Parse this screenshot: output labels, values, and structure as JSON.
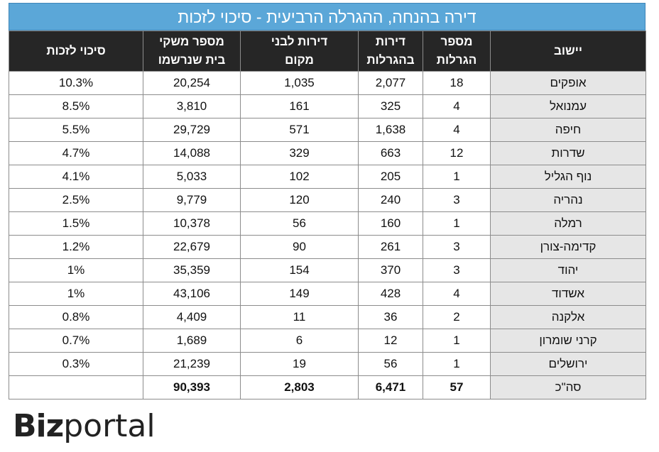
{
  "title": "דירה בהנחה, ההגרלה הרביעית - סיכוי לזכות",
  "headers": {
    "chance": "סיכוי לזכות",
    "households": [
      "מספר משקי",
      "בית  שנרשמו"
    ],
    "local": [
      "דירות לבני",
      "מקום"
    ],
    "lottery_apts": [
      "דירות",
      "בהגרלות"
    ],
    "lotteries": [
      "מספר",
      "הגרלות"
    ],
    "city": "יישוב"
  },
  "rows": [
    {
      "city": "אופקים",
      "lotteries": "18",
      "lottery_apts": "2,077",
      "local": "1,035",
      "households": "20,254",
      "chance": "10.3%"
    },
    {
      "city": "עמנואל",
      "lotteries": "4",
      "lottery_apts": "325",
      "local": "161",
      "households": "3,810",
      "chance": "8.5%"
    },
    {
      "city": "חיפה",
      "lotteries": "4",
      "lottery_apts": "1,638",
      "local": "571",
      "households": "29,729",
      "chance": "5.5%"
    },
    {
      "city": "שדרות",
      "lotteries": "12",
      "lottery_apts": "663",
      "local": "329",
      "households": "14,088",
      "chance": "4.7%"
    },
    {
      "city": "נוף הגליל",
      "lotteries": "1",
      "lottery_apts": "205",
      "local": "102",
      "households": "5,033",
      "chance": "4.1%"
    },
    {
      "city": "נהריה",
      "lotteries": "3",
      "lottery_apts": "240",
      "local": "120",
      "households": "9,779",
      "chance": "2.5%"
    },
    {
      "city": "רמלה",
      "lotteries": "1",
      "lottery_apts": "160",
      "local": "56",
      "households": "10,378",
      "chance": "1.5%"
    },
    {
      "city": "קדימה-צורן",
      "lotteries": "3",
      "lottery_apts": "261",
      "local": "90",
      "households": "22,679",
      "chance": "1.2%"
    },
    {
      "city": "יהוד",
      "lotteries": "3",
      "lottery_apts": "370",
      "local": "154",
      "households": "35,359",
      "chance": "1%"
    },
    {
      "city": "אשדוד",
      "lotteries": "4",
      "lottery_apts": "428",
      "local": "149",
      "households": "43,106",
      "chance": "1%"
    },
    {
      "city": "אלקנה",
      "lotteries": "2",
      "lottery_apts": "36",
      "local": "11",
      "households": "4,409",
      "chance": "0.8%"
    },
    {
      "city": "קרני שומרון",
      "lotteries": "1",
      "lottery_apts": "12",
      "local": "6",
      "households": "1,689",
      "chance": "0.7%"
    },
    {
      "city": "ירושלים",
      "lotteries": "1",
      "lottery_apts": "56",
      "local": "19",
      "households": "21,239",
      "chance": "0.3%"
    }
  ],
  "total": {
    "city": "סה\"כ",
    "lotteries": "57",
    "lottery_apts": "6,471",
    "local": "2,803",
    "households": "90,393",
    "chance": ""
  },
  "logo": {
    "part1": "Biz",
    "part2": "portal"
  },
  "colors": {
    "title_bg": "#5ba7d8",
    "header_bg": "#262626",
    "city_bg": "#e6e6e6"
  }
}
